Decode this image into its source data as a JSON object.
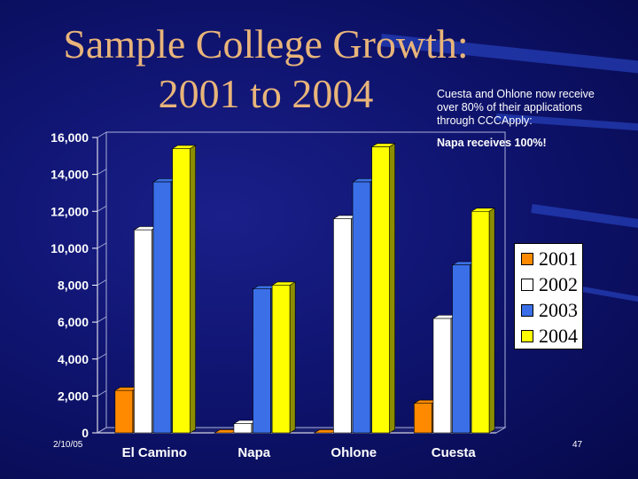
{
  "slide": {
    "title_line1": "Sample College Growth:",
    "title_line2": "2001 to 2004",
    "note_lines": [
      "Cuesta and Ohlone now receive",
      "over 80% of their applications",
      "through CCCApply:"
    ],
    "note_emphasis": "Napa receives 100%!",
    "date": "2/10/05",
    "page_number": "47"
  },
  "colors": {
    "background": "#0f1470",
    "title": "#e8b47a",
    "series": [
      "#ff8a00",
      "#ffffff",
      "#3a6fe8",
      "#ffff00"
    ]
  },
  "chart_data": {
    "type": "bar",
    "style": "3d-clustered",
    "categories": [
      "El Camino",
      "Napa",
      "Ohlone",
      "Cuesta"
    ],
    "series": [
      {
        "name": "2001",
        "values": [
          2300,
          0,
          0,
          1600
        ]
      },
      {
        "name": "2002",
        "values": [
          11000,
          500,
          11600,
          6200
        ]
      },
      {
        "name": "2003",
        "values": [
          13600,
          7800,
          13600,
          9100
        ]
      },
      {
        "name": "2004",
        "values": [
          15400,
          8000,
          15500,
          12000
        ]
      }
    ],
    "yticks": [
      "0",
      "2,000",
      "4,000",
      "6,000",
      "8,000",
      "10,000",
      "12,000",
      "14,000",
      "16,000"
    ],
    "ylim": [
      0,
      16000
    ],
    "grid": false,
    "legend_position": "right"
  }
}
